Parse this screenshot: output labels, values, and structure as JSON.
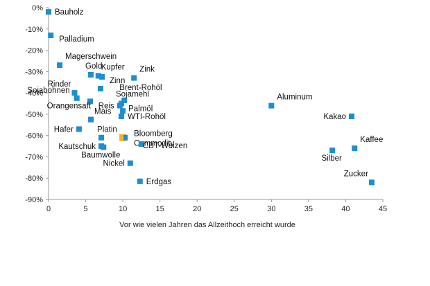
{
  "chart_data": {
    "type": "scatter",
    "title": "",
    "xlabel": "Vor wie vielen Jahren das Allzeithoch erreicht wurde",
    "ylabel": "",
    "xlim": [
      0,
      45
    ],
    "ylim": [
      -90,
      0
    ],
    "x_ticks": [
      "0",
      "5",
      "10",
      "15",
      "20",
      "25",
      "30",
      "35",
      "40",
      "45"
    ],
    "y_ticks": [
      "0%",
      "-10%",
      "-20%",
      "-30%",
      "-40%",
      "-50%",
      "-60%",
      "-70%",
      "-80%",
      "-90%"
    ],
    "grid": false,
    "colors": {
      "point": "#1b8fd1",
      "highlight": "#f5b324"
    },
    "points": [
      {
        "label": "Bauholz",
        "x": 0.0,
        "y": -2,
        "lpos": "right"
      },
      {
        "label": "Palladium",
        "x": 0.3,
        "y": -13,
        "lpos": "right-below"
      },
      {
        "label": "Magerschwein",
        "x": 1.5,
        "y": -27,
        "lpos": "above-right"
      },
      {
        "label": "Gold",
        "x": 5.7,
        "y": -31.5,
        "lpos": "above-gold"
      },
      {
        "label": "Kupfer",
        "x": 6.7,
        "y": -32,
        "lpos": "above-kupfer"
      },
      {
        "label": "",
        "x": 7.2,
        "y": -32.5,
        "lpos": "none"
      },
      {
        "label": "Zink",
        "x": 11.5,
        "y": -33,
        "lpos": "above-right"
      },
      {
        "label": "Rinder",
        "x": 3.5,
        "y": -40,
        "lpos": "above-left"
      },
      {
        "label": "Sojabohnen",
        "x": 3.8,
        "y": -42.5,
        "lpos": "left-up"
      },
      {
        "label": "Zinn",
        "x": 7.0,
        "y": -38,
        "lpos": "above-right-zinn"
      },
      {
        "label": "Brent-Rohöl",
        "x": 10.2,
        "y": -43.5,
        "lpos": "upper-right-brent"
      },
      {
        "label": "Sojamehl",
        "x": 9.8,
        "y": -45,
        "lpos": "upper-sojamehl"
      },
      {
        "label": "Orangensaft",
        "x": 5.6,
        "y": -44,
        "lpos": "left-below"
      },
      {
        "label": "Reis",
        "x": 9.6,
        "y": -46,
        "lpos": "left"
      },
      {
        "label": "Palmöl",
        "x": 10.0,
        "y": -48.5,
        "lpos": "right-up"
      },
      {
        "label": "WTI-Rohöl",
        "x": 9.8,
        "y": -51,
        "lpos": "right"
      },
      {
        "label": "Mais",
        "x": 5.7,
        "y": -52.5,
        "lpos": "above-right-mais"
      },
      {
        "label": "Hafer",
        "x": 4.1,
        "y": -57,
        "lpos": "left"
      },
      {
        "label": "Platin",
        "x": 7.1,
        "y": -61,
        "lpos": "above-right-platin"
      },
      {
        "label": "Bloomberg Commodity",
        "x": 10.0,
        "y": -61,
        "lpos": "bloomberg",
        "highlight": true
      },
      {
        "label": "Kautschuk",
        "x": 7.1,
        "y": -65,
        "lpos": "left"
      },
      {
        "label": "Baumwolle",
        "x": 7.4,
        "y": -65.5,
        "lpos": "below"
      },
      {
        "label": "CBT-Weizen",
        "x": 12.5,
        "y": -64,
        "lpos": "right-below-cbt"
      },
      {
        "label": "Nickel",
        "x": 11.0,
        "y": -73,
        "lpos": "left"
      },
      {
        "label": "Erdgas",
        "x": 12.3,
        "y": -81.5,
        "lpos": "right"
      },
      {
        "label": "Aluminum",
        "x": 30.0,
        "y": -46,
        "lpos": "above-right"
      },
      {
        "label": "Kakao",
        "x": 40.8,
        "y": -51,
        "lpos": "left"
      },
      {
        "label": "Silber",
        "x": 38.2,
        "y": -67,
        "lpos": "below-silber"
      },
      {
        "label": "Kaffee",
        "x": 41.2,
        "y": -66,
        "lpos": "above-right"
      },
      {
        "label": "Zucker",
        "x": 43.5,
        "y": -82,
        "lpos": "above-left"
      }
    ]
  }
}
